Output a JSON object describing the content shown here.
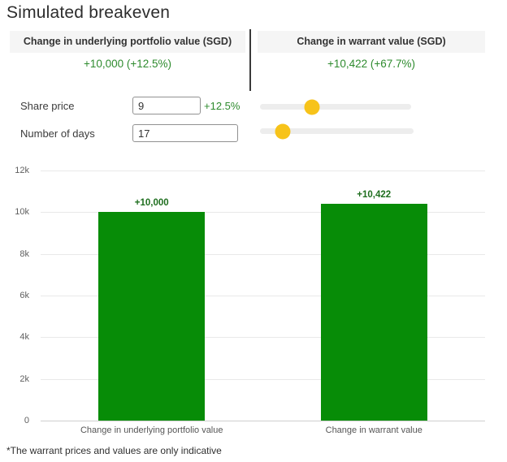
{
  "title": "Simulated breakeven",
  "summary": {
    "left": {
      "header": "Change in underlying portfolio value (SGD)",
      "value": "+10,000 (+12.5%)"
    },
    "right": {
      "header": "Change in warrant value (SGD)",
      "value": "+10,422 (+67.7%)"
    }
  },
  "controls": {
    "share_price": {
      "label": "Share price",
      "value": "9",
      "change_pct": "+12.5%",
      "slider_percent": 34.5
    },
    "number_of_days": {
      "label": "Number of days",
      "value": "17",
      "slider_percent": 15
    }
  },
  "chart_data": {
    "type": "bar",
    "categories": [
      "Change in underlying portfolio value",
      "Change in warrant value"
    ],
    "values": [
      10000,
      10422
    ],
    "bar_labels": [
      "+10,000",
      "+10,422"
    ],
    "title": "",
    "xlabel": "",
    "ylabel": "",
    "ylim": [
      0,
      12000
    ],
    "yticks": [
      0,
      2000,
      4000,
      6000,
      8000,
      10000,
      12000
    ],
    "ytick_labels": [
      "0",
      "2k",
      "4k",
      "6k",
      "8k",
      "10k",
      "12k"
    ],
    "bar_color": "#078c07",
    "grid": true,
    "legend": false
  },
  "footnote": "*The warrant prices and values are only indicative",
  "colors": {
    "positive_green": "#2e8b2e",
    "bar_green": "#078c07",
    "bar_label_green": "#1e6e1e",
    "slider_handle_yellow": "#f7c31a",
    "header_bg": "#f5f5f5"
  }
}
